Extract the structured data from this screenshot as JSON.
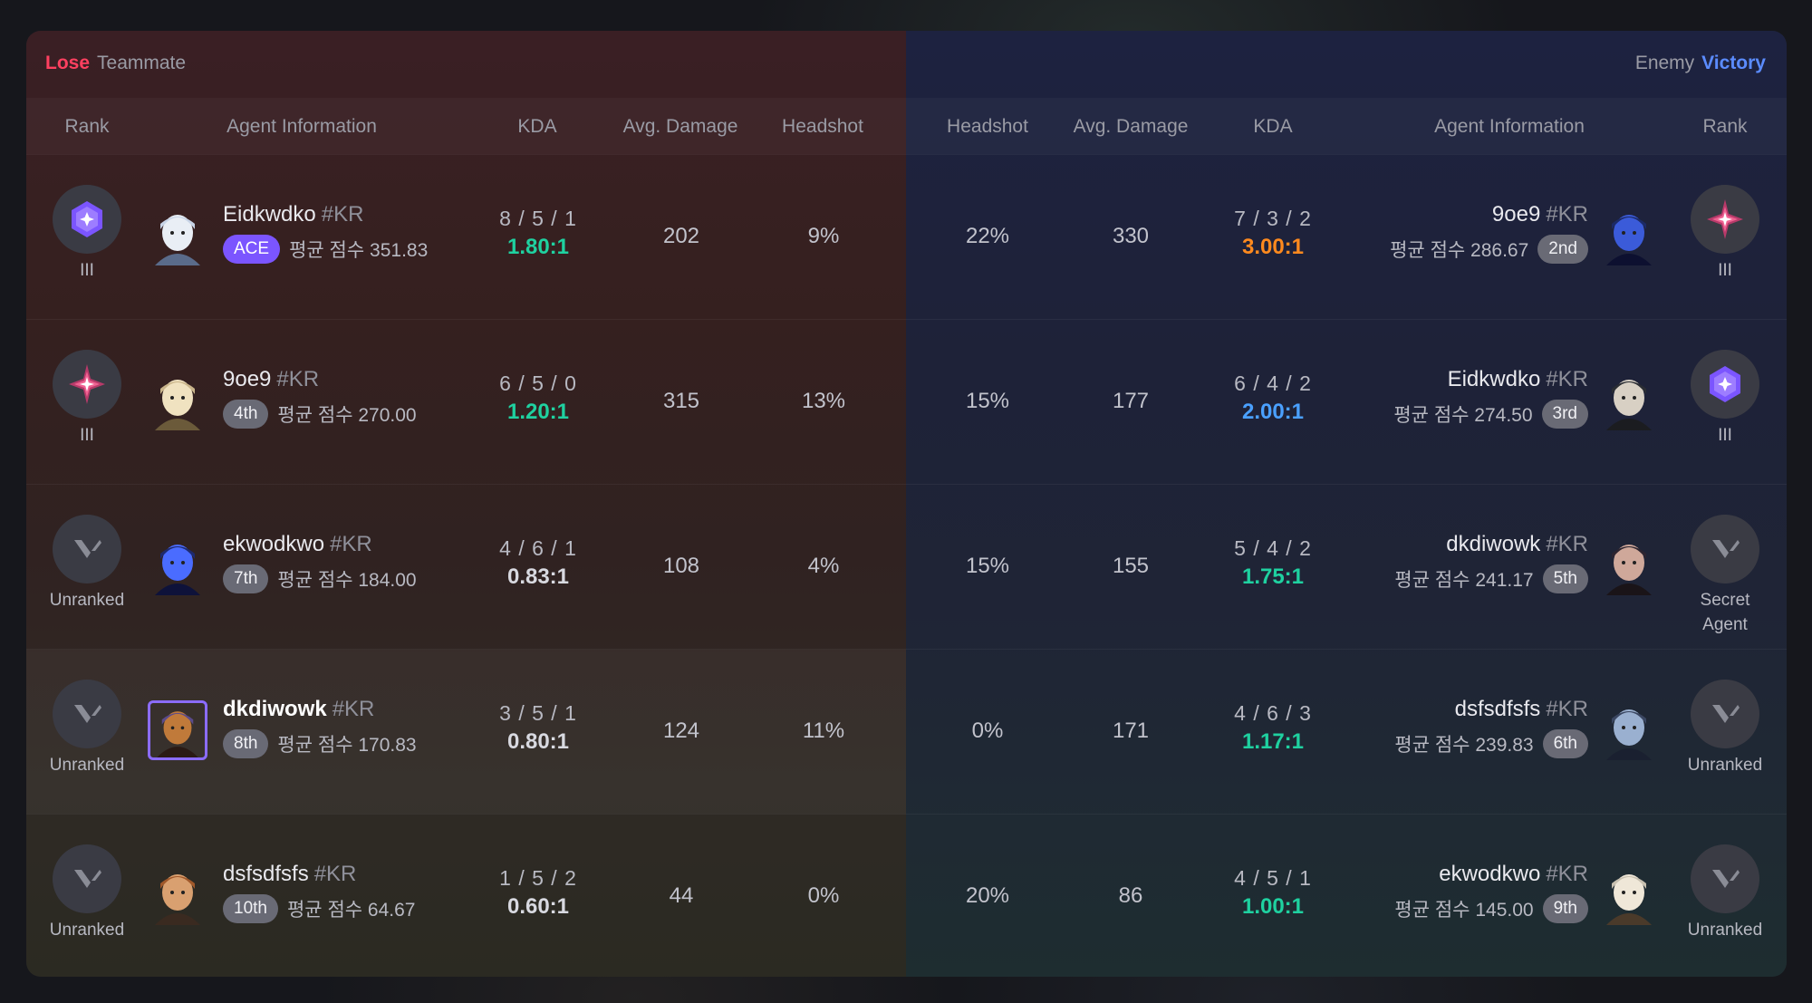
{
  "teammate": {
    "result": "Lose",
    "label": "Teammate"
  },
  "enemy": {
    "result": "Victory",
    "label": "Enemy"
  },
  "headers_left": [
    "Rank",
    "Agent Information",
    "KDA",
    "Avg. Damage",
    "Headshot"
  ],
  "headers_right": [
    "Headshot",
    "Avg. Damage",
    "KDA",
    "Agent Information",
    "Rank"
  ],
  "colors": {
    "lose": "#ff4060",
    "victory": "#5b8cff",
    "ace": "#7b55ff",
    "ratio_green": "#1fd1a0",
    "ratio_orange": "#ff8a1e",
    "ratio_blue": "#4aa0ff",
    "ratio_white": "#d8d9e0"
  },
  "rows": [
    {
      "left": {
        "rank_icon": "ascendant-rank-icon",
        "rank_label": "III",
        "avatar": "agent-avatar-icon",
        "name": "Eidkwdko",
        "tag": "#KR",
        "badge": "ACE",
        "score": "평균 점수 351.83",
        "kda": "8 / 5 / 1",
        "ratio": "1.80:1",
        "ratio_color": "green",
        "damage": "202",
        "headshot": "9%"
      },
      "right": {
        "rank_icon": "immortal-rank-icon",
        "rank_label": "III",
        "avatar": "agent-avatar-icon",
        "name": "9oe9",
        "tag": "#KR",
        "badge": "2nd",
        "score": "평균 점수 286.67",
        "kda": "7 / 3 / 2",
        "ratio": "3.00:1",
        "ratio_color": "orange",
        "damage": "330",
        "headshot": "22%"
      }
    },
    {
      "left": {
        "rank_icon": "immortal-rank-icon",
        "rank_label": "III",
        "avatar": "agent-avatar-icon",
        "name": "9oe9",
        "tag": "#KR",
        "badge": "4th",
        "score": "평균 점수 270.00",
        "kda": "6 / 5 / 0",
        "ratio": "1.20:1",
        "ratio_color": "green",
        "damage": "315",
        "headshot": "13%"
      },
      "right": {
        "rank_icon": "ascendant-rank-icon",
        "rank_label": "III",
        "avatar": "agent-avatar-icon",
        "name": "Eidkwdko",
        "tag": "#KR",
        "badge": "3rd",
        "score": "평균 점수 274.50",
        "kda": "6 / 4 / 2",
        "ratio": "2.00:1",
        "ratio_color": "blue",
        "damage": "177",
        "headshot": "15%"
      }
    },
    {
      "left": {
        "rank_icon": "unranked-icon",
        "rank_label": "Unranked",
        "avatar": "agent-avatar-icon",
        "name": "ekwodkwo",
        "tag": "#KR",
        "badge": "7th",
        "score": "평균 점수 184.00",
        "kda": "4 / 6 / 1",
        "ratio": "0.83:1",
        "ratio_color": "white",
        "damage": "108",
        "headshot": "4%"
      },
      "right": {
        "rank_icon": "unranked-icon",
        "rank_label": "Secret Agent",
        "avatar": "agent-avatar-icon",
        "name": "dkdiwowk",
        "tag": "#KR",
        "badge": "5th",
        "score": "평균 점수 241.17",
        "kda": "5 / 4 / 2",
        "ratio": "1.75:1",
        "ratio_color": "green",
        "damage": "155",
        "headshot": "15%"
      }
    },
    {
      "left": {
        "rank_icon": "unranked-icon",
        "rank_label": "Unranked",
        "avatar": "agent-avatar-icon",
        "name": "dkdiwowk",
        "tag": "#KR",
        "badge": "8th",
        "score": "평균 점수 170.83",
        "kda": "3 / 5 / 1",
        "ratio": "0.80:1",
        "ratio_color": "white",
        "damage": "124",
        "headshot": "11%",
        "is_self": true
      },
      "right": {
        "rank_icon": "unranked-icon",
        "rank_label": "Unranked",
        "avatar": "agent-avatar-icon",
        "name": "dsfsdfsfs",
        "tag": "#KR",
        "badge": "6th",
        "score": "평균 점수 239.83",
        "kda": "4 / 6 / 3",
        "ratio": "1.17:1",
        "ratio_color": "green",
        "damage": "171",
        "headshot": "0%"
      }
    },
    {
      "left": {
        "rank_icon": "unranked-icon",
        "rank_label": "Unranked",
        "avatar": "agent-avatar-icon",
        "name": "dsfsdfsfs",
        "tag": "#KR",
        "badge": "10th",
        "score": "평균 점수 64.67",
        "kda": "1 / 5 / 2",
        "ratio": "0.60:1",
        "ratio_color": "white",
        "damage": "44",
        "headshot": "0%"
      },
      "right": {
        "rank_icon": "unranked-icon",
        "rank_label": "Unranked",
        "avatar": "agent-avatar-icon",
        "name": "ekwodkwo",
        "tag": "#KR",
        "badge": "9th",
        "score": "평균 점수 145.00",
        "kda": "4 / 5 / 1",
        "ratio": "1.00:1",
        "ratio_color": "green",
        "damage": "86",
        "headshot": "20%"
      }
    }
  ]
}
